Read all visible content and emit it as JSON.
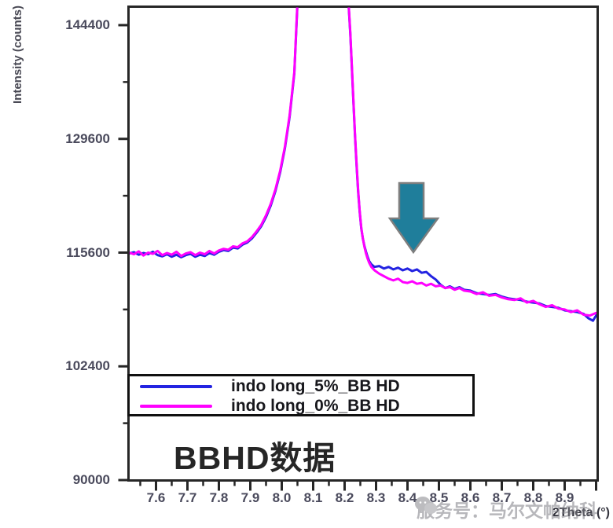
{
  "caption": "BBHD数据",
  "watermark": {
    "text": "服务号：马尔文帕纳科",
    "icon": "wechat-icon"
  },
  "colors": {
    "series_5pct": "#2323e1",
    "series_0pct": "#ff00ff",
    "arrow_fill": "#1f7e9b",
    "arrow_border": "#7e7e7e",
    "frame": "#262626",
    "tick_label": "#4a4a5c"
  },
  "chart_data": {
    "type": "line",
    "title": "",
    "xlabel": "2Theta (°)",
    "ylabel": "Intensity (counts)",
    "y_scale": "sqrt",
    "grid": false,
    "legend_position": "bottom-left boxed",
    "axes": {
      "x": {
        "min": 7.5125,
        "max": 9.005,
        "ticks": [
          7.6,
          7.7,
          7.8,
          7.9,
          8.0,
          8.1,
          8.2,
          8.3,
          8.4,
          8.5,
          8.6,
          8.7,
          8.8,
          8.9
        ],
        "unlabeled_ticks": [
          9.0
        ],
        "minor_step": 0.05
      },
      "y": {
        "min": 89900,
        "max": 146900,
        "ticks": [
          144400,
          129600,
          115600,
          102400,
          90000
        ],
        "minor_ticks": [
          136900,
          122500,
          108900,
          96100
        ]
      }
    },
    "annotation": {
      "arrow": "teal down-arrow pointing at blue shoulder near 2theta 8.35-8.5"
    },
    "series": [
      {
        "name": "indo long_5%_BB HD",
        "color": "#2323e1",
        "points": [
          [
            7.515,
            115500
          ],
          [
            7.53,
            115650
          ],
          [
            7.545,
            115350
          ],
          [
            7.56,
            115550
          ],
          [
            7.575,
            115400
          ],
          [
            7.59,
            115700
          ],
          [
            7.605,
            115300
          ],
          [
            7.62,
            115150
          ],
          [
            7.635,
            115400
          ],
          [
            7.65,
            115100
          ],
          [
            7.665,
            115350
          ],
          [
            7.68,
            115050
          ],
          [
            7.695,
            115300
          ],
          [
            7.71,
            115450
          ],
          [
            7.725,
            115100
          ],
          [
            7.74,
            115350
          ],
          [
            7.755,
            115200
          ],
          [
            7.77,
            115550
          ],
          [
            7.785,
            115350
          ],
          [
            7.8,
            115700
          ],
          [
            7.815,
            115900
          ],
          [
            7.83,
            115800
          ],
          [
            7.845,
            116200
          ],
          [
            7.86,
            116100
          ],
          [
            7.875,
            116550
          ],
          [
            7.89,
            116800
          ],
          [
            7.905,
            117300
          ],
          [
            7.92,
            118000
          ],
          [
            7.935,
            118800
          ],
          [
            7.95,
            119900
          ],
          [
            7.965,
            121300
          ],
          [
            7.98,
            123100
          ],
          [
            7.995,
            125400
          ],
          [
            8.01,
            128400
          ],
          [
            8.025,
            132400
          ],
          [
            8.04,
            138000
          ],
          [
            8.05,
            147300
          ],
          [
            8.07,
            157300
          ],
          [
            8.09,
            164300
          ],
          [
            8.11,
            167300
          ],
          [
            8.13,
            166800
          ],
          [
            8.15,
            161800
          ],
          [
            8.17,
            155300
          ],
          [
            8.19,
            149800
          ],
          [
            8.205,
            148000
          ],
          [
            8.212,
            147600
          ],
          [
            8.218,
            143300
          ],
          [
            8.223,
            138800
          ],
          [
            8.228,
            134300
          ],
          [
            8.233,
            130000
          ],
          [
            8.238,
            126300
          ],
          [
            8.243,
            123000
          ],
          [
            8.248,
            120500
          ],
          [
            8.253,
            118500
          ],
          [
            8.258,
            117300
          ],
          [
            8.263,
            116400
          ],
          [
            8.268,
            115700
          ],
          [
            8.273,
            115100
          ],
          [
            8.278,
            114600
          ],
          [
            8.285,
            114200
          ],
          [
            8.295,
            113900
          ],
          [
            8.31,
            114000
          ],
          [
            8.325,
            113700
          ],
          [
            8.34,
            113900
          ],
          [
            8.355,
            113600
          ],
          [
            8.37,
            113800
          ],
          [
            8.385,
            113500
          ],
          [
            8.4,
            113700
          ],
          [
            8.415,
            113400
          ],
          [
            8.43,
            113600
          ],
          [
            8.445,
            113200
          ],
          [
            8.46,
            113300
          ],
          [
            8.475,
            112800
          ],
          [
            8.49,
            112400
          ],
          [
            8.505,
            111800
          ],
          [
            8.52,
            111400
          ],
          [
            8.535,
            111600
          ],
          [
            8.55,
            111300
          ],
          [
            8.565,
            111500
          ],
          [
            8.58,
            111200
          ],
          [
            8.6,
            111100
          ],
          [
            8.62,
            110800
          ],
          [
            8.64,
            110700
          ],
          [
            8.66,
            110600
          ],
          [
            8.68,
            110700
          ],
          [
            8.7,
            110400
          ],
          [
            8.72,
            110200
          ],
          [
            8.74,
            110100
          ],
          [
            8.76,
            110000
          ],
          [
            8.78,
            109800
          ],
          [
            8.8,
            109700
          ],
          [
            8.82,
            109600
          ],
          [
            8.84,
            109300
          ],
          [
            8.86,
            109200
          ],
          [
            8.88,
            109100
          ],
          [
            8.9,
            108800
          ],
          [
            8.92,
            108700
          ],
          [
            8.94,
            108600
          ],
          [
            8.96,
            108400
          ],
          [
            8.975,
            107900
          ],
          [
            8.99,
            107600
          ],
          [
            9.0,
            108200
          ],
          [
            9.008,
            108300
          ]
        ]
      },
      {
        "name": "indo long_0%_BB HD",
        "color": "#ff00ff",
        "points": [
          [
            7.515,
            115600
          ],
          [
            7.53,
            115400
          ],
          [
            7.545,
            115750
          ],
          [
            7.56,
            115250
          ],
          [
            7.575,
            115600
          ],
          [
            7.59,
            115450
          ],
          [
            7.605,
            115800
          ],
          [
            7.62,
            115300
          ],
          [
            7.635,
            115550
          ],
          [
            7.65,
            115350
          ],
          [
            7.665,
            115700
          ],
          [
            7.68,
            115200
          ],
          [
            7.695,
            115500
          ],
          [
            7.71,
            115650
          ],
          [
            7.725,
            115300
          ],
          [
            7.74,
            115600
          ],
          [
            7.755,
            115400
          ],
          [
            7.77,
            115800
          ],
          [
            7.785,
            115500
          ],
          [
            7.8,
            115850
          ],
          [
            7.815,
            116050
          ],
          [
            7.83,
            115950
          ],
          [
            7.845,
            116350
          ],
          [
            7.86,
            116250
          ],
          [
            7.875,
            116700
          ],
          [
            7.89,
            116950
          ],
          [
            7.905,
            117450
          ],
          [
            7.92,
            118150
          ],
          [
            7.935,
            118950
          ],
          [
            7.95,
            120100
          ],
          [
            7.965,
            121500
          ],
          [
            7.98,
            123300
          ],
          [
            7.995,
            125600
          ],
          [
            8.01,
            128600
          ],
          [
            8.025,
            132600
          ],
          [
            8.04,
            138200
          ],
          [
            8.05,
            147500
          ],
          [
            8.07,
            157500
          ],
          [
            8.09,
            164500
          ],
          [
            8.11,
            167500
          ],
          [
            8.13,
            167000
          ],
          [
            8.15,
            162000
          ],
          [
            8.17,
            155500
          ],
          [
            8.19,
            150000
          ],
          [
            8.205,
            148200
          ],
          [
            8.212,
            147800
          ],
          [
            8.218,
            143500
          ],
          [
            8.223,
            139000
          ],
          [
            8.228,
            134500
          ],
          [
            8.233,
            130200
          ],
          [
            8.238,
            126500
          ],
          [
            8.243,
            123200
          ],
          [
            8.248,
            120600
          ],
          [
            8.253,
            118600
          ],
          [
            8.258,
            117300
          ],
          [
            8.263,
            116300
          ],
          [
            8.268,
            115500
          ],
          [
            8.273,
            114900
          ],
          [
            8.278,
            114400
          ],
          [
            8.285,
            113900
          ],
          [
            8.295,
            113500
          ],
          [
            8.31,
            113100
          ],
          [
            8.325,
            112800
          ],
          [
            8.34,
            112500
          ],
          [
            8.355,
            112300
          ],
          [
            8.37,
            112500
          ],
          [
            8.385,
            112100
          ],
          [
            8.4,
            112000
          ],
          [
            8.415,
            112200
          ],
          [
            8.43,
            111900
          ],
          [
            8.445,
            112000
          ],
          [
            8.46,
            111700
          ],
          [
            8.475,
            111900
          ],
          [
            8.49,
            111600
          ],
          [
            8.505,
            111700
          ],
          [
            8.52,
            111400
          ],
          [
            8.535,
            111500
          ],
          [
            8.55,
            111200
          ],
          [
            8.565,
            111400
          ],
          [
            8.58,
            111100
          ],
          [
            8.6,
            111000
          ],
          [
            8.62,
            110700
          ],
          [
            8.64,
            110900
          ],
          [
            8.66,
            110500
          ],
          [
            8.68,
            110600
          ],
          [
            8.7,
            110300
          ],
          [
            8.72,
            110100
          ],
          [
            8.74,
            110000
          ],
          [
            8.76,
            110200
          ],
          [
            8.78,
            109700
          ],
          [
            8.8,
            109900
          ],
          [
            8.82,
            109500
          ],
          [
            8.84,
            109200
          ],
          [
            8.86,
            109400
          ],
          [
            8.88,
            109000
          ],
          [
            8.9,
            108900
          ],
          [
            8.92,
            108600
          ],
          [
            8.94,
            108800
          ],
          [
            8.96,
            108300
          ],
          [
            8.98,
            108200
          ],
          [
            9.0,
            108500
          ],
          [
            9.008,
            108400
          ]
        ]
      }
    ]
  }
}
